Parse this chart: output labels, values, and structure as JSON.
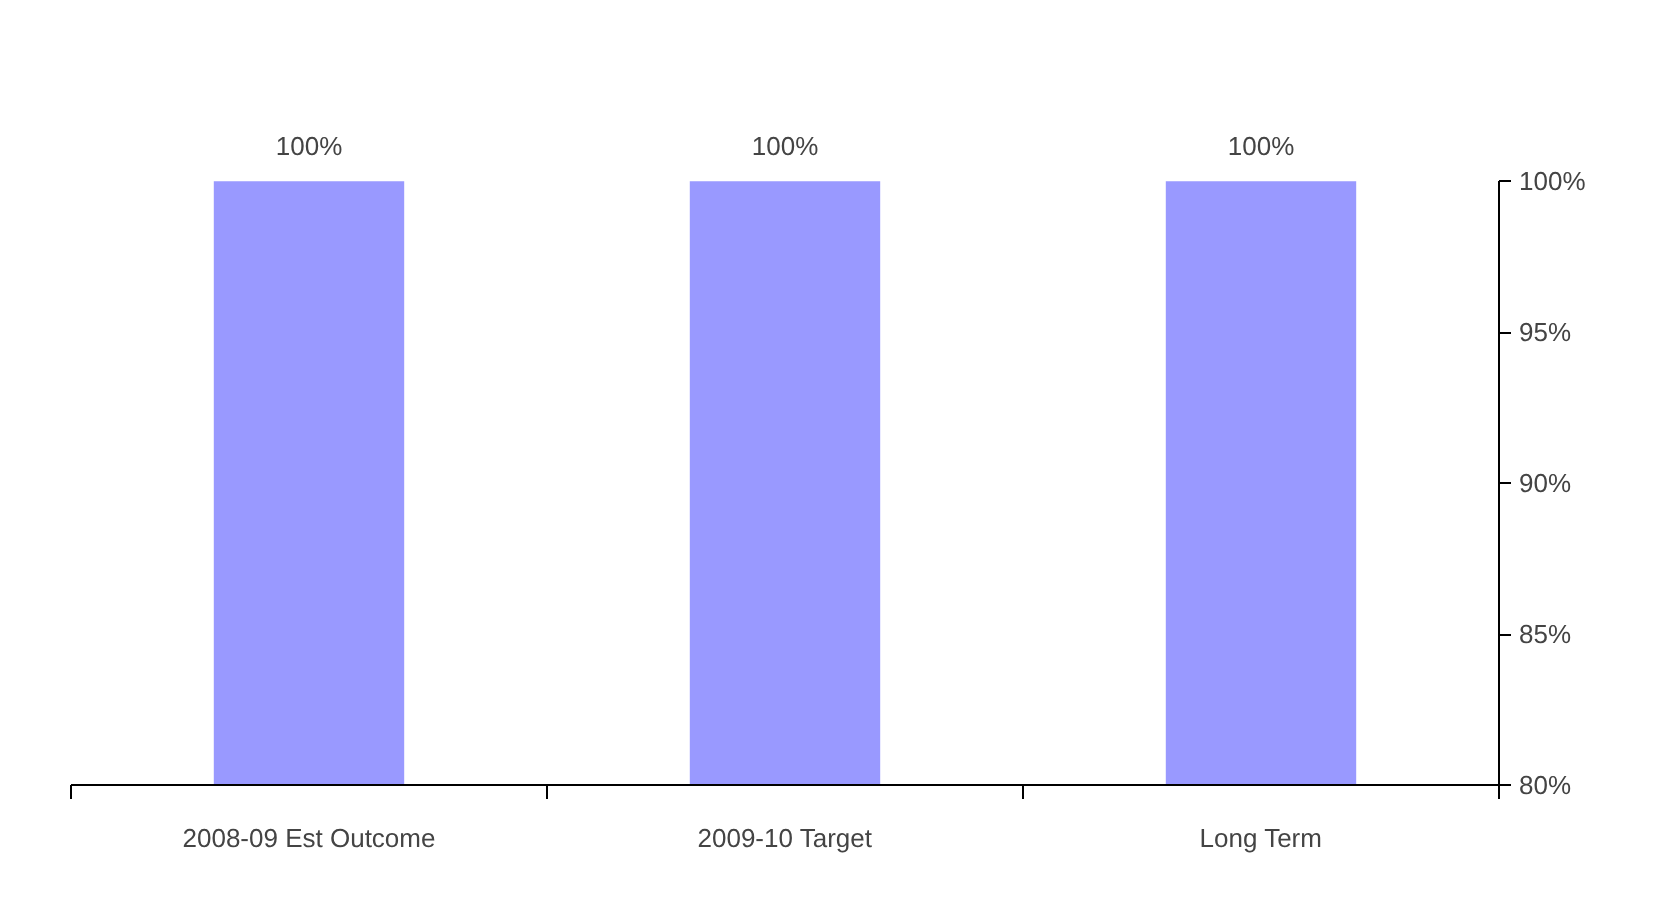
{
  "chart_data": {
    "type": "bar",
    "categories": [
      "2008-09 Est Outcome",
      "2009-10 Target",
      "Long Term"
    ],
    "values": [
      100,
      100,
      100
    ],
    "color": "#9999ff",
    "value_labels": [
      "100%",
      "100%",
      "100%"
    ],
    "ylim": [
      80,
      100
    ],
    "yticks": [
      {
        "value": 80,
        "label": "80%"
      },
      {
        "value": 85,
        "label": "85%"
      },
      {
        "value": 90,
        "label": "90%"
      },
      {
        "value": 95,
        "label": "95%"
      },
      {
        "value": 100,
        "label": "100%"
      }
    ],
    "grid": false
  }
}
